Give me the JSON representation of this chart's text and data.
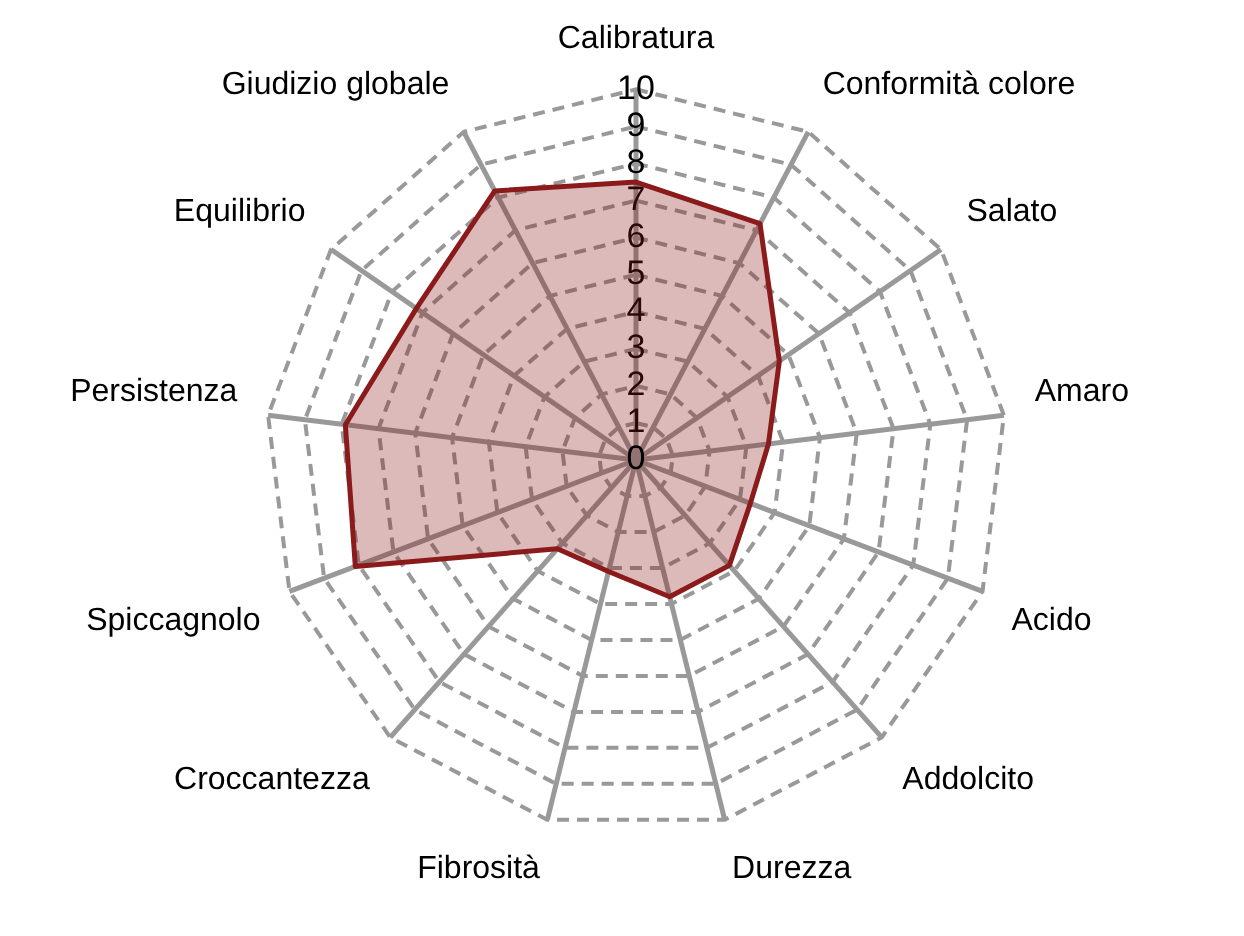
{
  "chart_data": {
    "type": "radar",
    "categories": [
      "Calibratura",
      "Conformità colore",
      "Salato",
      "Amaro",
      "Acido",
      "Addolcito",
      "Durezza",
      "Fibrosità",
      "Croccantezza",
      "Spiccagnolo",
      "Persistenza",
      "Equilibrio",
      "Giudizio globale"
    ],
    "series": [
      {
        "color": "#8b1a1a",
        "values": [
          7.5,
          7.2,
          4.7,
          3.6,
          3.3,
          3.8,
          3.8,
          3.1,
          3.2,
          8.1,
          7.9,
          7.2,
          8.2
        ]
      }
    ],
    "ylim": [
      0,
      10
    ],
    "yticks": [
      0,
      1,
      2,
      3,
      4,
      5,
      6,
      7,
      8,
      9,
      10
    ],
    "grid": true,
    "legend": false,
    "marker": "none"
  }
}
